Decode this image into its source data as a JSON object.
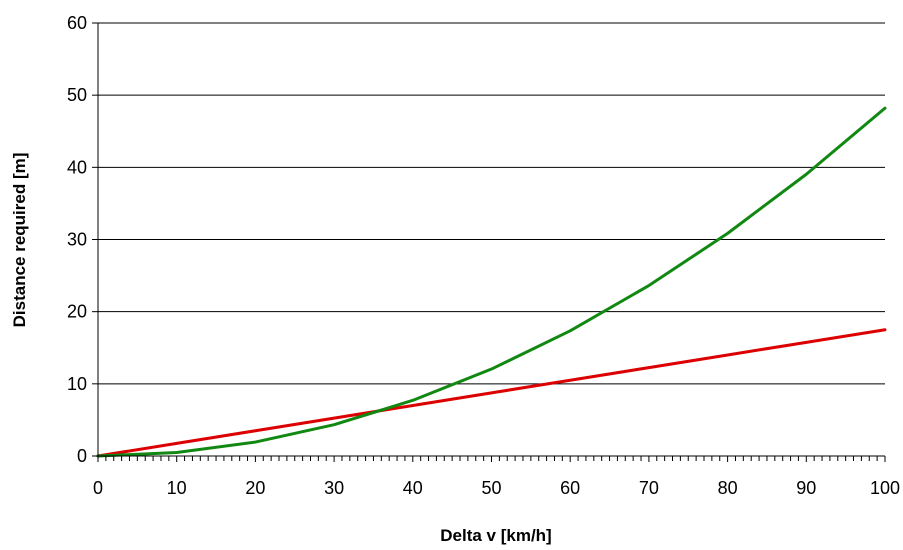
{
  "chart_data": {
    "type": "line",
    "title": "",
    "xlabel": "Delta v [km/h]",
    "ylabel": "Distance required [m]",
    "xlim": [
      0,
      100
    ],
    "ylim": [
      0,
      60
    ],
    "x_major_ticks": [
      "0",
      "10",
      "20",
      "30",
      "40",
      "50",
      "60",
      "70",
      "80",
      "90",
      "100"
    ],
    "y_major_ticks": [
      "0",
      "10",
      "20",
      "30",
      "40",
      "50",
      "60"
    ],
    "x_minor_step": 1,
    "grid": "horizontal major",
    "legend": "none",
    "series": [
      {
        "color": "#dd0000",
        "x": [
          0,
          10,
          20,
          30,
          40,
          50,
          60,
          70,
          80,
          90,
          100
        ],
        "y": [
          0,
          1.75,
          3.5,
          5.25,
          7.0,
          8.75,
          10.5,
          12.25,
          14.0,
          15.75,
          17.5
        ]
      },
      {
        "color": "#118811",
        "x": [
          0,
          10,
          20,
          30,
          40,
          50,
          60,
          70,
          80,
          90,
          100
        ],
        "y": [
          0,
          0.48,
          1.93,
          4.34,
          7.71,
          12.05,
          17.35,
          23.62,
          30.85,
          39.04,
          48.2
        ]
      }
    ]
  }
}
